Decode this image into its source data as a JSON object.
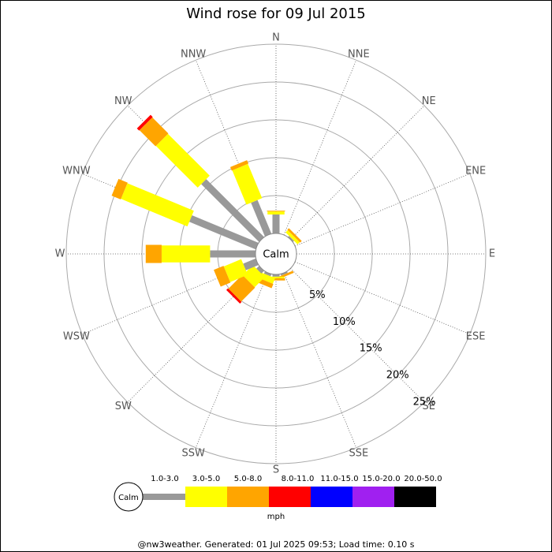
{
  "chart_data": {
    "type": "windrose",
    "title": "Wind rose for 09 Jul 2015",
    "directions": [
      "N",
      "NNE",
      "NE",
      "ENE",
      "E",
      "ESE",
      "SE",
      "SSE",
      "S",
      "SSW",
      "SW",
      "WSW",
      "W",
      "WNW",
      "NW",
      "NNW"
    ],
    "calm_label": "Calm",
    "rlim": [
      0,
      25
    ],
    "rticks": [
      {
        "value": 5,
        "label": "5%"
      },
      {
        "value": 10,
        "label": "10%"
      },
      {
        "value": 15,
        "label": "15%"
      },
      {
        "value": 20,
        "label": "20%"
      },
      {
        "value": 25,
        "label": "25%"
      }
    ],
    "legend_title": "mph",
    "series": [
      {
        "name": "1.0-3.0",
        "color": "#999999",
        "values": [
          2.5,
          0,
          0.2,
          0,
          0,
          0,
          0,
          0.2,
          0.3,
          0.3,
          0.5,
          1.8,
          6.0,
          9.5,
          10.8,
          4.8
        ]
      },
      {
        "name": "3.0-5.0",
        "color": "#ffff00",
        "values": [
          0.4,
          0,
          0.4,
          0,
          0,
          0,
          0,
          0,
          0.2,
          0.8,
          1.9,
          2.5,
          6.4,
          9.5,
          7.8,
          4.9
        ]
      },
      {
        "name": "5.0-8.0",
        "color": "#ffa500",
        "values": [
          0.1,
          0,
          0.3,
          0,
          0,
          0,
          0,
          0.3,
          0.3,
          0.6,
          2.6,
          1.4,
          2.1,
          1.3,
          3.0,
          0.5
        ]
      },
      {
        "name": "8.0-11.0",
        "color": "#ff0000",
        "values": [
          0,
          0,
          0,
          0,
          0,
          0,
          0,
          0,
          0,
          0,
          0.3,
          0,
          0,
          0,
          0.4,
          0
        ]
      },
      {
        "name": "11.0-15.0",
        "color": "#0000ff",
        "values": [
          0,
          0,
          0,
          0,
          0,
          0,
          0,
          0,
          0,
          0,
          0,
          0,
          0,
          0,
          0,
          0
        ]
      },
      {
        "name": "15.0-20.0",
        "color": "#a020f0",
        "values": [
          0,
          0,
          0,
          0,
          0,
          0,
          0,
          0,
          0,
          0,
          0,
          0,
          0,
          0,
          0,
          0
        ]
      },
      {
        "name": "20.0-50.0",
        "color": "#000000",
        "values": [
          0,
          0,
          0,
          0,
          0,
          0,
          0,
          0,
          0,
          0,
          0,
          0,
          0,
          0,
          0,
          0
        ]
      }
    ],
    "footer": "@nw3weather. Generated: 01 Jul 2025 09:53; Load time: 0.10 s"
  }
}
